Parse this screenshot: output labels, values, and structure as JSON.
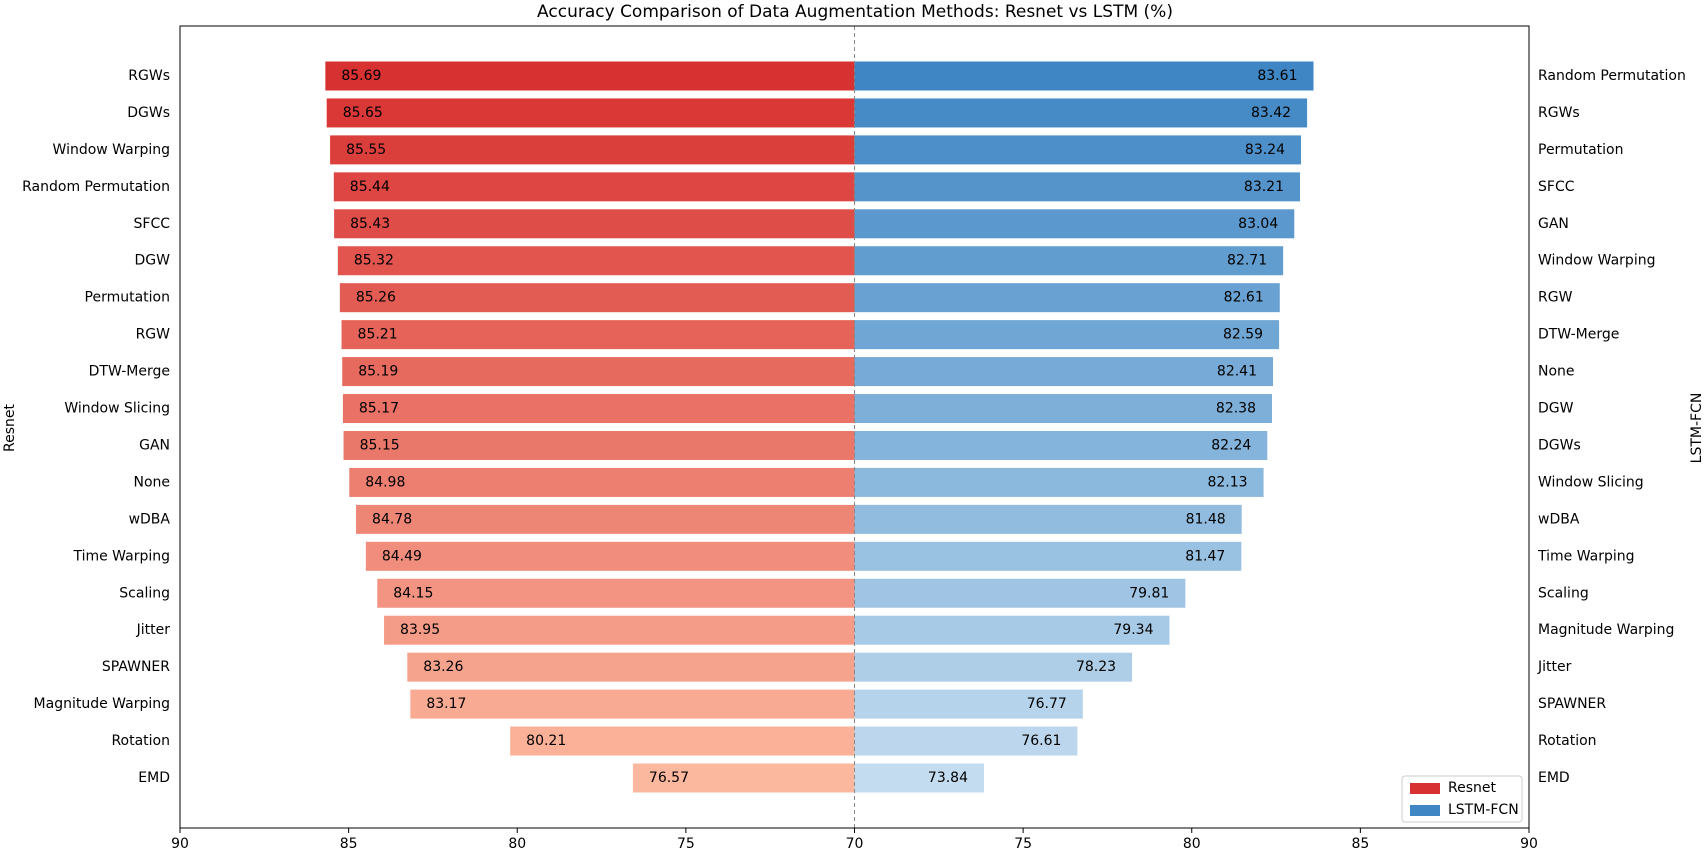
{
  "chart_data": {
    "type": "butterfly",
    "title": "Accuracy Comparison of Data Augmentation Methods: Resnet vs LSTM (%)",
    "xlim": [
      70,
      90
    ],
    "xticks": [
      70,
      75,
      80,
      85,
      90
    ],
    "legend": "lower right",
    "series": [
      {
        "name": "Resnet",
        "axis_label": "Resnet",
        "color": "#d73131",
        "color_light": "#fcb89e",
        "categories": [
          "RGWs",
          "DGWs",
          "Window Warping",
          "Random Permutation",
          "SFCC",
          "DGW",
          "Permutation",
          "RGW",
          "DTW-Merge",
          "Window Slicing",
          "GAN",
          "None",
          "wDBA",
          "Time Warping",
          "Scaling",
          "Jitter",
          "SPAWNER",
          "Magnitude Warping",
          "Rotation",
          "EMD"
        ],
        "values": [
          85.69,
          85.65,
          85.55,
          85.44,
          85.43,
          85.32,
          85.26,
          85.21,
          85.19,
          85.17,
          85.15,
          84.98,
          84.78,
          84.49,
          84.15,
          83.95,
          83.26,
          83.17,
          80.21,
          76.57
        ]
      },
      {
        "name": "LSTM-FCN",
        "axis_label": "LSTM-FCN",
        "color": "#3f86c4",
        "color_light": "#c3dcef",
        "categories": [
          "Random Permutation",
          "RGWs",
          "Permutation",
          "SFCC",
          "GAN",
          "Window Warping",
          "RGW",
          "DTW-Merge",
          "None",
          "DGW",
          "DGWs",
          "Window Slicing",
          "wDBA",
          "Time Warping",
          "Scaling",
          "Magnitude Warping",
          "Jitter",
          "SPAWNER",
          "Rotation",
          "EMD"
        ],
        "values": [
          83.61,
          83.42,
          83.24,
          83.21,
          83.04,
          82.71,
          82.61,
          82.59,
          82.41,
          82.38,
          82.24,
          82.13,
          81.48,
          81.47,
          79.81,
          79.34,
          78.23,
          76.77,
          76.61,
          73.84
        ]
      }
    ]
  }
}
